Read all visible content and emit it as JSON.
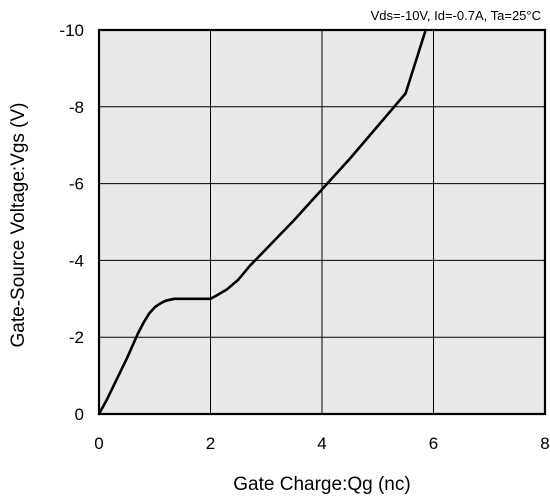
{
  "chart_data": {
    "type": "line",
    "title": "",
    "conditions": "Vds=-10V, Id=-0.7A, Ta=25°C",
    "xlabel": "Gate Charge:Qg  (nc)",
    "ylabel": "Gate-Source Voltage:Vgs  (V)",
    "xlim": [
      0,
      8
    ],
    "ylim": [
      0,
      -10
    ],
    "x_ticks": [
      0,
      2,
      4,
      6,
      8
    ],
    "x_tick_labels": [
      "0",
      "2",
      "4",
      "6",
      "8"
    ],
    "y_ticks": [
      0,
      -2,
      -4,
      -6,
      -8,
      -10
    ],
    "y_tick_labels": [
      "0",
      "-2",
      "-4",
      "-6",
      "-8",
      "-10"
    ],
    "grid": true,
    "plot_background": "#e8e8e8",
    "series": [
      {
        "color": "#000000",
        "x": [
          0,
          0.15,
          0.3,
          0.5,
          0.7,
          0.8,
          0.9,
          1.0,
          1.1,
          1.2,
          1.35,
          1.5,
          1.8,
          2.0,
          2.1,
          2.3,
          2.5,
          2.7,
          3.0,
          3.5,
          4.0,
          4.5,
          5.0,
          5.5,
          5.85
        ],
        "y": [
          0,
          -0.4,
          -0.85,
          -1.45,
          -2.1,
          -2.38,
          -2.62,
          -2.78,
          -2.88,
          -2.95,
          -3.0,
          -3.0,
          -3.0,
          -3.0,
          -3.08,
          -3.25,
          -3.5,
          -3.85,
          -4.3,
          -5.05,
          -5.85,
          -6.65,
          -7.5,
          -8.35,
          -9.95
        ]
      }
    ]
  }
}
